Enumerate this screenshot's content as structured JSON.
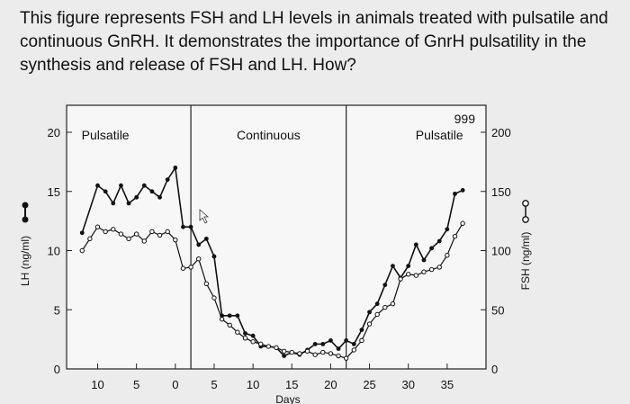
{
  "question": "This figure represents FSH and LH levels in animals treated with pulsatile and continuous GnRH. It demonstrates the importance of GnrH pulsatility in the synthesis and release of FSH and LH. How?",
  "chart_data": {
    "type": "line",
    "phases": [
      "Pulsatile",
      "Continuous",
      "Pulsatile"
    ],
    "corner_label": "999",
    "x_tick_labels": [
      "10",
      "5",
      "0",
      "5",
      "10",
      "15",
      "20",
      "25",
      "30",
      "35"
    ],
    "xlabel": "Days",
    "y_left": {
      "label": "LH (ng/ml)",
      "ticks": [
        0,
        5,
        10,
        15,
        20
      ],
      "range": [
        0,
        20
      ]
    },
    "y_right": {
      "label": "FSH (ng/ml)",
      "ticks": [
        0,
        50,
        100,
        150,
        200
      ],
      "range": [
        0,
        200
      ]
    },
    "series": [
      {
        "name": "LH",
        "axis": "left",
        "marker": "filled",
        "x": [
          -14,
          -12,
          -11,
          -10,
          -9,
          -8,
          -7,
          -6,
          -5,
          -4,
          -3,
          -2,
          -1,
          0,
          1,
          2,
          3,
          4,
          5,
          6,
          7,
          8,
          9,
          10,
          11,
          12,
          13,
          14,
          15,
          16,
          17,
          18,
          19,
          20,
          21,
          22,
          23,
          24,
          25,
          26,
          27,
          28,
          29,
          30,
          31,
          32,
          33,
          34,
          35
        ],
        "y": [
          11.5,
          15.5,
          15,
          14,
          15.5,
          14,
          14.5,
          15.5,
          15,
          14.5,
          16,
          17,
          12,
          12,
          10.5,
          11,
          9.5,
          4.5,
          4.5,
          4.5,
          3,
          2.8,
          1.9,
          1.9,
          1.8,
          1.1,
          1.4,
          1.2,
          1.6,
          2.1,
          2.1,
          2.4,
          1.7,
          2.4,
          2.1,
          3.3,
          4.8,
          5.5,
          7.1,
          8.7,
          7.7,
          8.7,
          10.5,
          9.2,
          10.2,
          10.8,
          11.8,
          14.8,
          15.1
        ]
      },
      {
        "name": "FSH",
        "axis": "right",
        "marker": "open",
        "x": [
          -14,
          -13,
          -12,
          -11,
          -10,
          -9,
          -8,
          -7,
          -6,
          -5,
          -4,
          -3,
          -2,
          -1,
          0,
          1,
          2,
          3,
          4,
          5,
          6,
          7,
          8,
          9,
          10,
          11,
          12,
          13,
          14,
          15,
          16,
          17,
          18,
          19,
          20,
          21,
          22,
          23,
          24,
          25,
          26,
          27,
          28,
          29,
          30,
          31,
          32,
          33,
          34,
          35
        ],
        "y": [
          100,
          110,
          120,
          116,
          118,
          114,
          110,
          114,
          108,
          116,
          113,
          116,
          109,
          85,
          86,
          93,
          72,
          60,
          42,
          37,
          31,
          26,
          23,
          21,
          19,
          18,
          15,
          14,
          13,
          15,
          12,
          14,
          13,
          11,
          9,
          16,
          24,
          38,
          46,
          52,
          55,
          76,
          80,
          79,
          82,
          84,
          86,
          96,
          112,
          123
        ]
      }
    ],
    "x_domain": [
      -16,
      38
    ],
    "phase_boundaries": [
      0,
      20
    ]
  }
}
